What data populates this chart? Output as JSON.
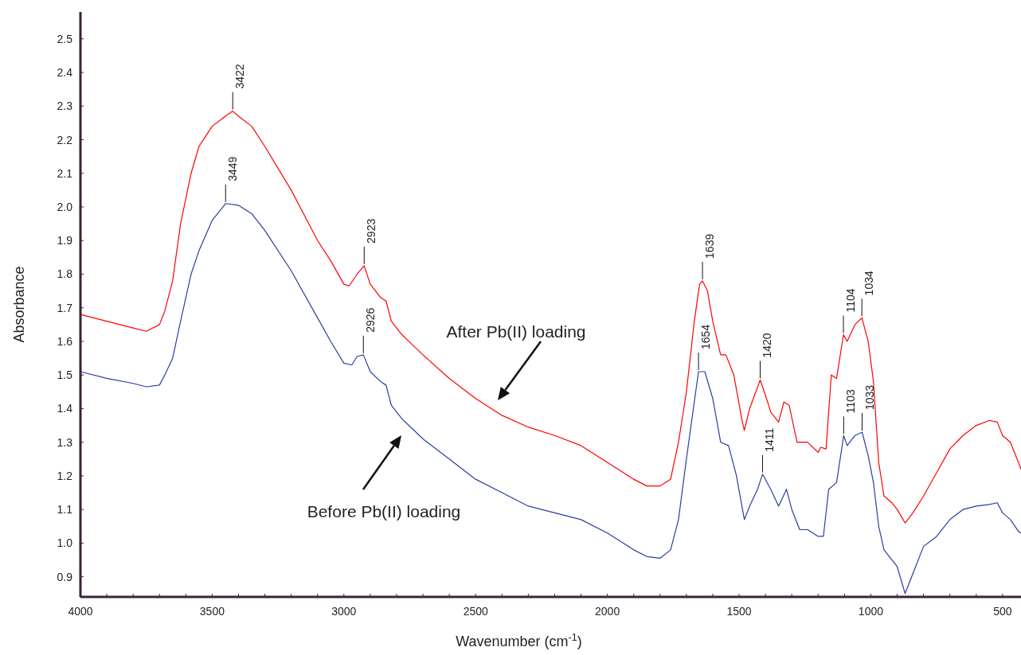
{
  "chart_data": {
    "type": "line",
    "xlabel": "Wavenumber (cm$^{-1}$)",
    "ylabel": "Absorbance",
    "xlim": [
      4000,
      430
    ],
    "ylim": [
      0.84,
      2.58
    ],
    "xticks": [
      4000,
      {
        "value": 3900,
        "label": null
      },
      {
        "value": 3800,
        "label": null
      },
      {
        "value": 3700,
        "label": null
      },
      {
        "value": 3600,
        "label": null
      },
      3500,
      {
        "value": 3400,
        "label": null
      },
      {
        "value": 3300,
        "label": null
      },
      {
        "value": 3200,
        "label": null
      },
      {
        "value": 3100,
        "label": null
      },
      3000,
      {
        "value": 2900,
        "label": null
      },
      {
        "value": 2800,
        "label": null
      },
      {
        "value": 2700,
        "label": null
      },
      {
        "value": 2600,
        "label": null
      },
      2500,
      {
        "value": 2400,
        "label": null
      },
      {
        "value": 2300,
        "label": null
      },
      {
        "value": 2200,
        "label": null
      },
      {
        "value": 2100,
        "label": null
      },
      2000,
      {
        "value": 1900,
        "label": null
      },
      {
        "value": 1800,
        "label": null
      },
      {
        "value": 1700,
        "label": null
      },
      {
        "value": 1600,
        "label": null
      },
      1500,
      {
        "value": 1400,
        "label": null
      },
      {
        "value": 1300,
        "label": null
      },
      {
        "value": 1200,
        "label": null
      },
      {
        "value": 1100,
        "label": null
      },
      1000,
      {
        "value": 900,
        "label": null
      },
      {
        "value": 800,
        "label": null
      },
      {
        "value": 700,
        "label": null
      },
      {
        "value": 600,
        "label": null
      },
      500
    ],
    "yticks": [
      0.9,
      {
        "value": 1,
        "label": "1.0"
      },
      1.1,
      1.2,
      1.3,
      1.4,
      1.5,
      1.6,
      1.7,
      1.8,
      1.9,
      {
        "value": 2,
        "label": "2.0"
      },
      2.1,
      2.2,
      2.3,
      2.4,
      2.5
    ],
    "grid": false,
    "marker": "none",
    "line_style": "solid",
    "series": [
      {
        "color": "#ff0000",
        "x": [
          4000,
          3900,
          3800,
          3750,
          3700,
          3680,
          3650,
          3620,
          3580,
          3550,
          3500,
          3450,
          3422,
          3400,
          3350,
          3300,
          3200,
          3100,
          3050,
          3000,
          2980,
          2950,
          2923,
          2900,
          2860,
          2840,
          2820,
          2780,
          2700,
          2600,
          2500,
          2400,
          2300,
          2200,
          2100,
          2000,
          1900,
          1850,
          1800,
          1760,
          1730,
          1700,
          1670,
          1650,
          1639,
          1620,
          1600,
          1570,
          1550,
          1520,
          1490,
          1480,
          1460,
          1420,
          1400,
          1380,
          1350,
          1330,
          1310,
          1280,
          1240,
          1200,
          1190,
          1170,
          1150,
          1130,
          1104,
          1090,
          1060,
          1034,
          1010,
          990,
          970,
          950,
          920,
          900,
          870,
          840,
          800,
          750,
          700,
          650,
          600,
          550,
          520,
          500,
          470,
          430
        ],
        "values": [
          1.68,
          1.66,
          1.64,
          1.63,
          1.65,
          1.69,
          1.78,
          1.95,
          2.1,
          2.18,
          2.24,
          2.27,
          2.285,
          2.27,
          2.24,
          2.18,
          2.05,
          1.9,
          1.84,
          1.77,
          1.765,
          1.8,
          1.825,
          1.77,
          1.73,
          1.72,
          1.66,
          1.62,
          1.56,
          1.49,
          1.43,
          1.38,
          1.345,
          1.32,
          1.29,
          1.24,
          1.19,
          1.17,
          1.17,
          1.19,
          1.3,
          1.45,
          1.66,
          1.77,
          1.78,
          1.75,
          1.66,
          1.56,
          1.56,
          1.5,
          1.37,
          1.335,
          1.4,
          1.485,
          1.44,
          1.39,
          1.36,
          1.42,
          1.41,
          1.3,
          1.3,
          1.27,
          1.285,
          1.28,
          1.5,
          1.49,
          1.62,
          1.6,
          1.65,
          1.67,
          1.6,
          1.48,
          1.24,
          1.14,
          1.12,
          1.1,
          1.06,
          1.09,
          1.14,
          1.21,
          1.28,
          1.32,
          1.35,
          1.365,
          1.36,
          1.32,
          1.3,
          1.22
        ]
      },
      {
        "color": "#2a3f9e",
        "x": [
          4000,
          3900,
          3800,
          3750,
          3700,
          3680,
          3650,
          3620,
          3580,
          3550,
          3500,
          3449,
          3400,
          3350,
          3300,
          3200,
          3100,
          3050,
          3000,
          2970,
          2950,
          2926,
          2900,
          2860,
          2840,
          2820,
          2780,
          2700,
          2600,
          2500,
          2400,
          2300,
          2200,
          2100,
          2000,
          1900,
          1850,
          1800,
          1760,
          1730,
          1700,
          1670,
          1654,
          1630,
          1600,
          1570,
          1540,
          1510,
          1480,
          1460,
          1430,
          1411,
          1380,
          1350,
          1320,
          1300,
          1270,
          1240,
          1200,
          1180,
          1160,
          1130,
          1103,
          1090,
          1060,
          1033,
          1010,
          990,
          970,
          950,
          900,
          870,
          840,
          800,
          750,
          700,
          650,
          600,
          550,
          520,
          500,
          470,
          440,
          430
        ],
        "values": [
          1.51,
          1.49,
          1.475,
          1.465,
          1.47,
          1.5,
          1.55,
          1.66,
          1.8,
          1.87,
          1.96,
          2.01,
          2.005,
          1.98,
          1.93,
          1.81,
          1.67,
          1.6,
          1.535,
          1.53,
          1.555,
          1.56,
          1.51,
          1.48,
          1.47,
          1.41,
          1.37,
          1.31,
          1.25,
          1.19,
          1.15,
          1.11,
          1.09,
          1.07,
          1.03,
          0.98,
          0.96,
          0.955,
          0.98,
          1.07,
          1.25,
          1.42,
          1.51,
          1.51,
          1.43,
          1.3,
          1.29,
          1.2,
          1.07,
          1.11,
          1.16,
          1.205,
          1.16,
          1.11,
          1.16,
          1.1,
          1.04,
          1.04,
          1.02,
          1.02,
          1.16,
          1.18,
          1.32,
          1.29,
          1.32,
          1.33,
          1.26,
          1.18,
          1.05,
          0.98,
          0.93,
          0.85,
          0.91,
          0.99,
          1.02,
          1.07,
          1.1,
          1.11,
          1.115,
          1.12,
          1.09,
          1.07,
          1.035,
          1.03
        ]
      }
    ],
    "annotations": [
      {
        "text": "3422",
        "x": 3422,
        "y": 2.285
      },
      {
        "text": "3449",
        "x": 3449,
        "y": 2.01
      },
      {
        "text": "2923",
        "x": 2923,
        "y": 1.825
      },
      {
        "text": "2926",
        "x": 2926,
        "y": 1.56
      },
      {
        "text": "1639",
        "x": 1639,
        "y": 1.78
      },
      {
        "text": "1654",
        "x": 1654,
        "y": 1.51
      },
      {
        "text": "1420",
        "x": 1420,
        "y": 1.485
      },
      {
        "text": "1411",
        "x": 1411,
        "y": 1.205
      },
      {
        "text": "1104",
        "x": 1104,
        "y": 1.62
      },
      {
        "text": "1034",
        "x": 1034,
        "y": 1.67
      },
      {
        "text": "1103",
        "x": 1103,
        "y": 1.32
      },
      {
        "text": "1033",
        "x": 1033,
        "y": 1.33
      },
      "After Pb(II) loading",
      "Before Pb(II) loading"
    ]
  }
}
